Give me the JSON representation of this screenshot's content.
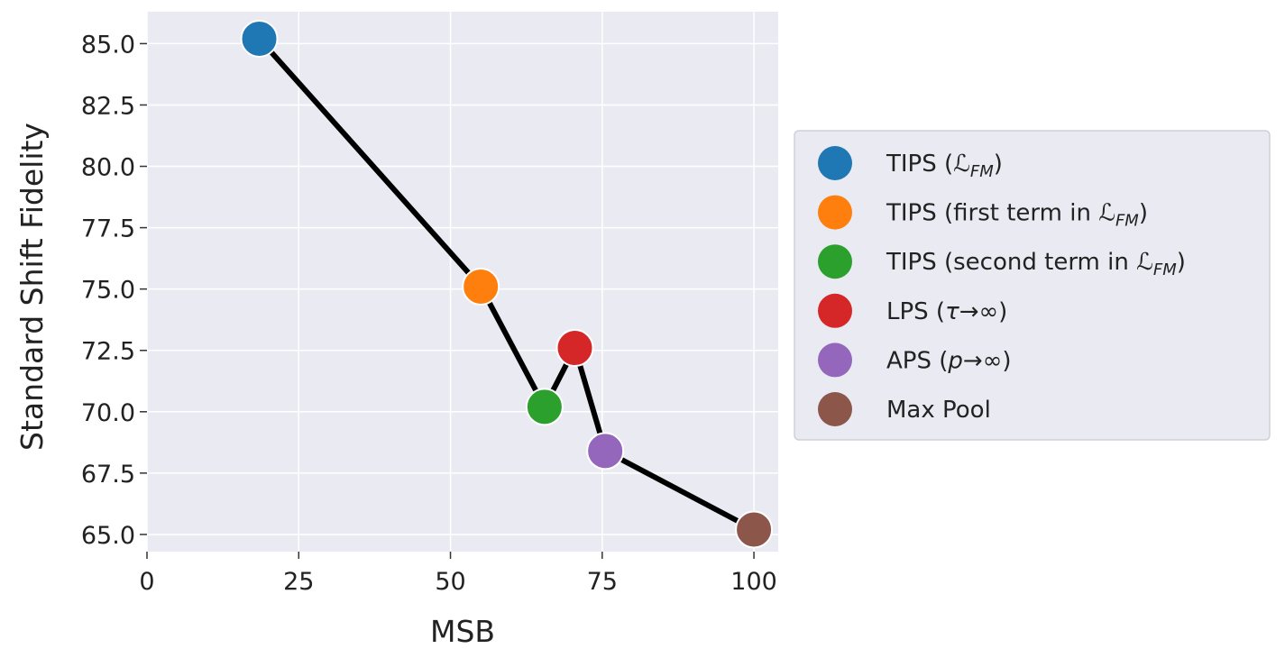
{
  "chart_data": {
    "type": "scatter",
    "xlabel": "MSB",
    "ylabel": "Standard Shift Fidelity",
    "xlim": [
      0,
      104
    ],
    "ylim": [
      64.3,
      86.3
    ],
    "xticks": [
      0,
      25,
      50,
      75,
      100
    ],
    "yticks": [
      65.0,
      67.5,
      70.0,
      72.5,
      75.0,
      77.5,
      80.0,
      82.5,
      85.0
    ],
    "grid": true,
    "legend_position": "right-outside",
    "connect_points": true,
    "line_color": "#000000",
    "plot_background": "#eaeaf2",
    "series": [
      {
        "name": "TIPS (ℒFM)",
        "name_main": "TIPS (",
        "name_math": "ℒ",
        "name_sub": "FM",
        "name_end": ")",
        "x": 18.5,
        "y": 85.2,
        "color": "#1f77b4"
      },
      {
        "name": "TIPS (first term in ℒFM)",
        "name_main": "TIPS (first term in ",
        "name_math": "ℒ",
        "name_sub": "FM",
        "name_end": ")",
        "x": 55.0,
        "y": 75.1,
        "color": "#ff7f0e"
      },
      {
        "name": "TIPS (second term in ℒFM)",
        "name_main": "TIPS (second term in ",
        "name_math": "ℒ",
        "name_sub": "FM",
        "name_end": ")",
        "x": 65.5,
        "y": 70.2,
        "color": "#2ca02c"
      },
      {
        "name": "LPS (τ→∞)",
        "name_main": "LPS (",
        "name_math": "τ",
        "name_sub": "",
        "name_end": "→∞)",
        "x": 70.5,
        "y": 72.6,
        "color": "#d62728"
      },
      {
        "name": "APS (p→∞)",
        "name_main": "APS (",
        "name_math": "p",
        "name_sub": "",
        "name_end": "→∞)",
        "x": 75.5,
        "y": 68.4,
        "color": "#9467bd"
      },
      {
        "name": "Max Pool",
        "name_main": "Max Pool",
        "name_math": "",
        "name_sub": "",
        "name_end": "",
        "x": 100.0,
        "y": 65.2,
        "color": "#8c564b"
      }
    ]
  }
}
